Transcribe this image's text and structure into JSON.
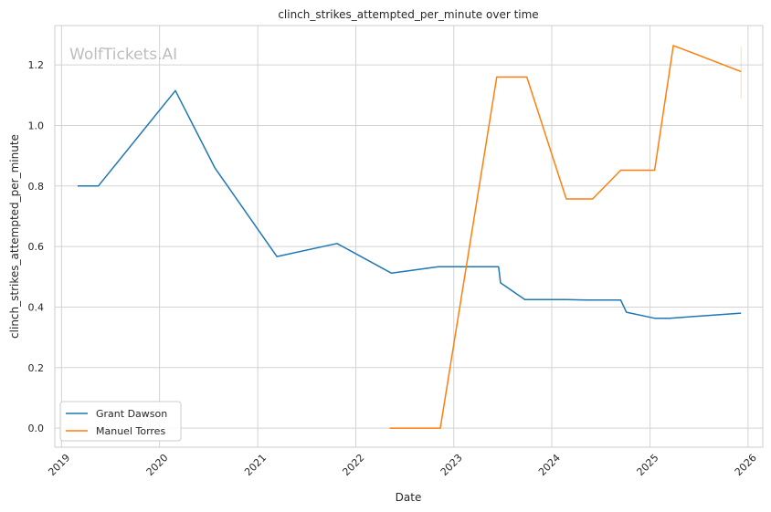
{
  "watermark": "WolfTickets.AI",
  "chart_data": {
    "type": "line",
    "title": "clinch_strikes_attempted_per_minute over time",
    "xlabel": "Date",
    "ylabel": "clinch_strikes_attempted_per_minute",
    "xlim": [
      "2018-12-07",
      "2026-02-25"
    ],
    "ylim": [
      -0.063,
      1.33
    ],
    "x_ticks": [
      "2019",
      "2020",
      "2021",
      "2022",
      "2023",
      "2024",
      "2025",
      "2026"
    ],
    "y_ticks": [
      "0.0",
      "0.2",
      "0.4",
      "0.6",
      "0.8",
      "1.0",
      "1.2"
    ],
    "y_tick_values": [
      0,
      0.2,
      0.4,
      0.6,
      0.8,
      1.0,
      1.2
    ],
    "grid": true,
    "legend_position": "lower-left",
    "series": [
      {
        "name": "Grant Dawson",
        "color": "#1f77b4",
        "points": [
          [
            "2019-03-02",
            0.8
          ],
          [
            "2019-05-18",
            0.8
          ],
          [
            "2020-02-29",
            1.115
          ],
          [
            "2020-07-25",
            0.86
          ],
          [
            "2021-03-13",
            0.567
          ],
          [
            "2021-10-23",
            0.61
          ],
          [
            "2022-05-14",
            0.512
          ],
          [
            "2022-11-05",
            0.533
          ],
          [
            "2023-06-17",
            0.533
          ],
          [
            "2023-06-24",
            0.48
          ],
          [
            "2023-09-23",
            0.425
          ],
          [
            "2024-02-24",
            0.425
          ],
          [
            "2024-05-18",
            0.423
          ],
          [
            "2024-09-14",
            0.423
          ],
          [
            "2024-10-05",
            0.383
          ],
          [
            "2025-01-18",
            0.363
          ],
          [
            "2025-03-15",
            0.363
          ],
          [
            "2025-12-06",
            0.38
          ]
        ]
      },
      {
        "name": "Manuel Torres",
        "color": "#ff7f0e",
        "points": [
          [
            "2022-05-07",
            0.0
          ],
          [
            "2022-11-12",
            0.0
          ],
          [
            "2023-06-10",
            1.16
          ],
          [
            "2023-09-30",
            1.16
          ],
          [
            "2024-02-24",
            0.757
          ],
          [
            "2024-06-01",
            0.757
          ],
          [
            "2024-09-14",
            0.852
          ],
          [
            "2025-01-18",
            0.852
          ],
          [
            "2025-03-29",
            1.264
          ],
          [
            "2025-12-06",
            1.178
          ]
        ]
      }
    ]
  }
}
